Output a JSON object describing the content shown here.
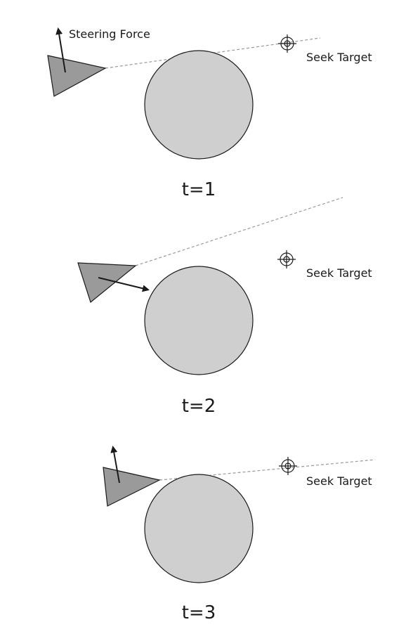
{
  "labels": {
    "steering_force": "Steering Force",
    "seek_target": "Seek Target"
  },
  "panels": [
    {
      "time_label": "t=1"
    },
    {
      "time_label": "t=2"
    },
    {
      "time_label": "t=3"
    }
  ],
  "colors": {
    "obstacle_fill": "#cfcfcf",
    "vehicle_fill": "#9a9a9a",
    "stroke": "#1a1a1a",
    "path_dash": "#9a9a9a"
  }
}
